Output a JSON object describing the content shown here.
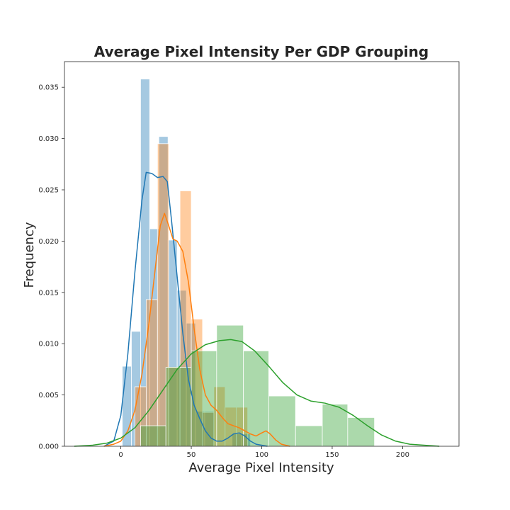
{
  "chart_data": {
    "type": "histogram",
    "title": "Average Pixel Intensity Per GDP Grouping",
    "xlabel": "Average Pixel Intensity",
    "ylabel": "Frequency",
    "xlim": [
      -40,
      240
    ],
    "ylim": [
      0,
      0.0375
    ],
    "x_ticks": [
      0,
      50,
      100,
      150,
      200
    ],
    "y_ticks": [
      0.0,
      0.005,
      0.01,
      0.015,
      0.02,
      0.025,
      0.03,
      0.035
    ],
    "y_tick_labels": [
      "0.000",
      "0.005",
      "0.010",
      "0.015",
      "0.020",
      "0.025",
      "0.030",
      "0.035"
    ],
    "grid": false,
    "series": [
      {
        "color": "#1f77b4",
        "bins": [
          {
            "x0": 1,
            "x1": 7.5,
            "y": 0.0078
          },
          {
            "x0": 7.5,
            "x1": 14,
            "y": 0.0112
          },
          {
            "x0": 14,
            "x1": 20.5,
            "y": 0.0358
          },
          {
            "x0": 20.5,
            "x1": 27,
            "y": 0.0212
          },
          {
            "x0": 27,
            "x1": 33.5,
            "y": 0.0302
          },
          {
            "x0": 33.5,
            "x1": 40,
            "y": 0.0201
          },
          {
            "x0": 40,
            "x1": 46.5,
            "y": 0.0152
          },
          {
            "x0": 46.5,
            "x1": 53,
            "y": 0.012
          },
          {
            "x0": 53,
            "x1": 59.5,
            "y": 0.0034
          },
          {
            "x0": 59.5,
            "x1": 66,
            "y": 0.0034
          },
          {
            "x0": 66,
            "x1": 72.5,
            "y": 0.0
          },
          {
            "x0": 72.5,
            "x1": 79,
            "y": 0.0
          },
          {
            "x0": 79,
            "x1": 85.5,
            "y": 0.0012
          },
          {
            "x0": 85.5,
            "x1": 92,
            "y": 0.0012
          }
        ],
        "kde": [
          [
            -12,
            0.0
          ],
          [
            -5,
            0.0005
          ],
          [
            0,
            0.003
          ],
          [
            5,
            0.009
          ],
          [
            10,
            0.017
          ],
          [
            15,
            0.024
          ],
          [
            18,
            0.0267
          ],
          [
            22,
            0.0266
          ],
          [
            26,
            0.0262
          ],
          [
            30,
            0.0263
          ],
          [
            33,
            0.0258
          ],
          [
            36,
            0.022
          ],
          [
            40,
            0.0165
          ],
          [
            44,
            0.011
          ],
          [
            48,
            0.0065
          ],
          [
            52,
            0.004
          ],
          [
            56,
            0.0027
          ],
          [
            60,
            0.0015
          ],
          [
            64,
            0.0008
          ],
          [
            68,
            0.0005
          ],
          [
            72,
            0.0005
          ],
          [
            76,
            0.0008
          ],
          [
            80,
            0.0012
          ],
          [
            84,
            0.0013
          ],
          [
            88,
            0.001
          ],
          [
            92,
            0.0005
          ],
          [
            96,
            0.0002
          ],
          [
            104,
            0.0
          ]
        ]
      },
      {
        "color": "#ff7f0e",
        "bins": [
          {
            "x0": 10,
            "x1": 18,
            "y": 0.0058
          },
          {
            "x0": 18,
            "x1": 26,
            "y": 0.0143
          },
          {
            "x0": 26,
            "x1": 34,
            "y": 0.0295
          },
          {
            "x0": 34,
            "x1": 42,
            "y": 0.0077
          },
          {
            "x0": 42,
            "x1": 50,
            "y": 0.0249
          },
          {
            "x0": 50,
            "x1": 58,
            "y": 0.0124
          },
          {
            "x0": 58,
            "x1": 66,
            "y": 0.0033
          },
          {
            "x0": 66,
            "x1": 74,
            "y": 0.0058
          },
          {
            "x0": 74,
            "x1": 82,
            "y": 0.0038
          },
          {
            "x0": 82,
            "x1": 90,
            "y": 0.0038
          },
          {
            "x0": 90,
            "x1": 98,
            "y": 0.0
          },
          {
            "x0": 98,
            "x1": 106,
            "y": 0.0
          }
        ],
        "kde": [
          [
            -12,
            0.0
          ],
          [
            -5,
            0.0002
          ],
          [
            0,
            0.0005
          ],
          [
            5,
            0.0015
          ],
          [
            10,
            0.0035
          ],
          [
            15,
            0.007
          ],
          [
            20,
            0.012
          ],
          [
            25,
            0.018
          ],
          [
            28,
            0.0215
          ],
          [
            31,
            0.0227
          ],
          [
            34,
            0.0215
          ],
          [
            37,
            0.0202
          ],
          [
            40,
            0.02
          ],
          [
            44,
            0.019
          ],
          [
            48,
            0.016
          ],
          [
            52,
            0.0115
          ],
          [
            56,
            0.0075
          ],
          [
            60,
            0.005
          ],
          [
            64,
            0.004
          ],
          [
            68,
            0.0035
          ],
          [
            72,
            0.0028
          ],
          [
            76,
            0.0022
          ],
          [
            80,
            0.002
          ],
          [
            84,
            0.0018
          ],
          [
            88,
            0.0015
          ],
          [
            92,
            0.0012
          ],
          [
            96,
            0.001
          ],
          [
            100,
            0.0013
          ],
          [
            103,
            0.0015
          ],
          [
            106,
            0.0012
          ],
          [
            110,
            0.0006
          ],
          [
            114,
            0.0002
          ],
          [
            120,
            0.0
          ]
        ]
      },
      {
        "color": "#2ca02c",
        "bins": [
          {
            "x0": 14,
            "x1": 32,
            "y": 0.002
          },
          {
            "x0": 32,
            "x1": 50,
            "y": 0.0077
          },
          {
            "x0": 50,
            "x1": 68,
            "y": 0.0093
          },
          {
            "x0": 68,
            "x1": 87,
            "y": 0.0118
          },
          {
            "x0": 87,
            "x1": 105,
            "y": 0.0093
          },
          {
            "x0": 105,
            "x1": 124,
            "y": 0.0049
          },
          {
            "x0": 124,
            "x1": 143,
            "y": 0.002
          },
          {
            "x0": 143,
            "x1": 161,
            "y": 0.0041
          },
          {
            "x0": 161,
            "x1": 180,
            "y": 0.0028
          }
        ],
        "kde": [
          [
            -33,
            0.0
          ],
          [
            -20,
            0.0001
          ],
          [
            -10,
            0.0003
          ],
          [
            0,
            0.0008
          ],
          [
            10,
            0.0018
          ],
          [
            20,
            0.0035
          ],
          [
            30,
            0.0055
          ],
          [
            40,
            0.0075
          ],
          [
            50,
            0.009
          ],
          [
            60,
            0.0099
          ],
          [
            70,
            0.0103
          ],
          [
            78,
            0.0104
          ],
          [
            86,
            0.0102
          ],
          [
            95,
            0.0093
          ],
          [
            105,
            0.0078
          ],
          [
            115,
            0.0062
          ],
          [
            125,
            0.005
          ],
          [
            135,
            0.0044
          ],
          [
            145,
            0.0042
          ],
          [
            155,
            0.0038
          ],
          [
            165,
            0.003
          ],
          [
            175,
            0.002
          ],
          [
            185,
            0.0011
          ],
          [
            195,
            0.0005
          ],
          [
            205,
            0.0002
          ],
          [
            215,
            0.0001
          ],
          [
            226,
            0.0
          ]
        ]
      }
    ]
  }
}
